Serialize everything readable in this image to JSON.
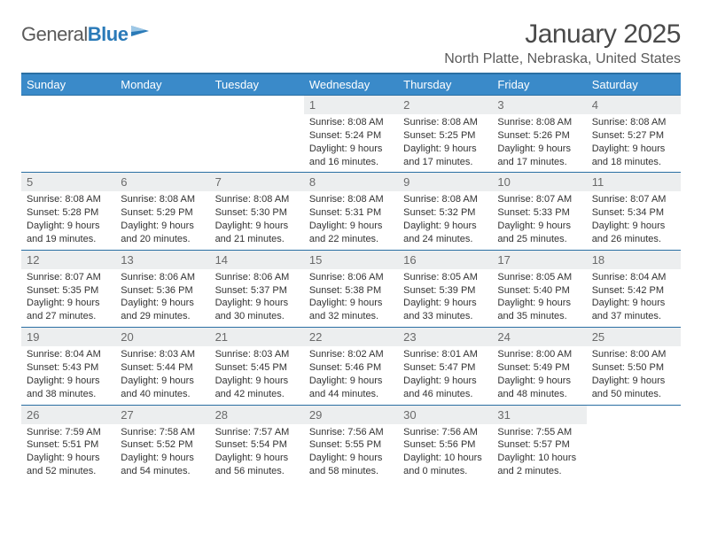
{
  "logo": {
    "textGray": "General",
    "textBlue": "Blue"
  },
  "header": {
    "title": "January 2025",
    "location": "North Platte, Nebraska, United States"
  },
  "colors": {
    "headerBg": "#3a8ac9",
    "headerBorder": "#2a6fa3",
    "dayNumBg": "#eceeef",
    "logoBlue": "#2a7ab8"
  },
  "dayNames": [
    "Sunday",
    "Monday",
    "Tuesday",
    "Wednesday",
    "Thursday",
    "Friday",
    "Saturday"
  ],
  "weeks": [
    [
      {
        "n": "",
        "sr": "",
        "ss": "",
        "dl": ""
      },
      {
        "n": "",
        "sr": "",
        "ss": "",
        "dl": ""
      },
      {
        "n": "",
        "sr": "",
        "ss": "",
        "dl": ""
      },
      {
        "n": "1",
        "sr": "8:08 AM",
        "ss": "5:24 PM",
        "dl": "9 hours and 16 minutes."
      },
      {
        "n": "2",
        "sr": "8:08 AM",
        "ss": "5:25 PM",
        "dl": "9 hours and 17 minutes."
      },
      {
        "n": "3",
        "sr": "8:08 AM",
        "ss": "5:26 PM",
        "dl": "9 hours and 17 minutes."
      },
      {
        "n": "4",
        "sr": "8:08 AM",
        "ss": "5:27 PM",
        "dl": "9 hours and 18 minutes."
      }
    ],
    [
      {
        "n": "5",
        "sr": "8:08 AM",
        "ss": "5:28 PM",
        "dl": "9 hours and 19 minutes."
      },
      {
        "n": "6",
        "sr": "8:08 AM",
        "ss": "5:29 PM",
        "dl": "9 hours and 20 minutes."
      },
      {
        "n": "7",
        "sr": "8:08 AM",
        "ss": "5:30 PM",
        "dl": "9 hours and 21 minutes."
      },
      {
        "n": "8",
        "sr": "8:08 AM",
        "ss": "5:31 PM",
        "dl": "9 hours and 22 minutes."
      },
      {
        "n": "9",
        "sr": "8:08 AM",
        "ss": "5:32 PM",
        "dl": "9 hours and 24 minutes."
      },
      {
        "n": "10",
        "sr": "8:07 AM",
        "ss": "5:33 PM",
        "dl": "9 hours and 25 minutes."
      },
      {
        "n": "11",
        "sr": "8:07 AM",
        "ss": "5:34 PM",
        "dl": "9 hours and 26 minutes."
      }
    ],
    [
      {
        "n": "12",
        "sr": "8:07 AM",
        "ss": "5:35 PM",
        "dl": "9 hours and 27 minutes."
      },
      {
        "n": "13",
        "sr": "8:06 AM",
        "ss": "5:36 PM",
        "dl": "9 hours and 29 minutes."
      },
      {
        "n": "14",
        "sr": "8:06 AM",
        "ss": "5:37 PM",
        "dl": "9 hours and 30 minutes."
      },
      {
        "n": "15",
        "sr": "8:06 AM",
        "ss": "5:38 PM",
        "dl": "9 hours and 32 minutes."
      },
      {
        "n": "16",
        "sr": "8:05 AM",
        "ss": "5:39 PM",
        "dl": "9 hours and 33 minutes."
      },
      {
        "n": "17",
        "sr": "8:05 AM",
        "ss": "5:40 PM",
        "dl": "9 hours and 35 minutes."
      },
      {
        "n": "18",
        "sr": "8:04 AM",
        "ss": "5:42 PM",
        "dl": "9 hours and 37 minutes."
      }
    ],
    [
      {
        "n": "19",
        "sr": "8:04 AM",
        "ss": "5:43 PM",
        "dl": "9 hours and 38 minutes."
      },
      {
        "n": "20",
        "sr": "8:03 AM",
        "ss": "5:44 PM",
        "dl": "9 hours and 40 minutes."
      },
      {
        "n": "21",
        "sr": "8:03 AM",
        "ss": "5:45 PM",
        "dl": "9 hours and 42 minutes."
      },
      {
        "n": "22",
        "sr": "8:02 AM",
        "ss": "5:46 PM",
        "dl": "9 hours and 44 minutes."
      },
      {
        "n": "23",
        "sr": "8:01 AM",
        "ss": "5:47 PM",
        "dl": "9 hours and 46 minutes."
      },
      {
        "n": "24",
        "sr": "8:00 AM",
        "ss": "5:49 PM",
        "dl": "9 hours and 48 minutes."
      },
      {
        "n": "25",
        "sr": "8:00 AM",
        "ss": "5:50 PM",
        "dl": "9 hours and 50 minutes."
      }
    ],
    [
      {
        "n": "26",
        "sr": "7:59 AM",
        "ss": "5:51 PM",
        "dl": "9 hours and 52 minutes."
      },
      {
        "n": "27",
        "sr": "7:58 AM",
        "ss": "5:52 PM",
        "dl": "9 hours and 54 minutes."
      },
      {
        "n": "28",
        "sr": "7:57 AM",
        "ss": "5:54 PM",
        "dl": "9 hours and 56 minutes."
      },
      {
        "n": "29",
        "sr": "7:56 AM",
        "ss": "5:55 PM",
        "dl": "9 hours and 58 minutes."
      },
      {
        "n": "30",
        "sr": "7:56 AM",
        "ss": "5:56 PM",
        "dl": "10 hours and 0 minutes."
      },
      {
        "n": "31",
        "sr": "7:55 AM",
        "ss": "5:57 PM",
        "dl": "10 hours and 2 minutes."
      },
      {
        "n": "",
        "sr": "",
        "ss": "",
        "dl": ""
      }
    ]
  ],
  "labels": {
    "sunrise": "Sunrise: ",
    "sunset": "Sunset: ",
    "daylight": "Daylight: "
  }
}
